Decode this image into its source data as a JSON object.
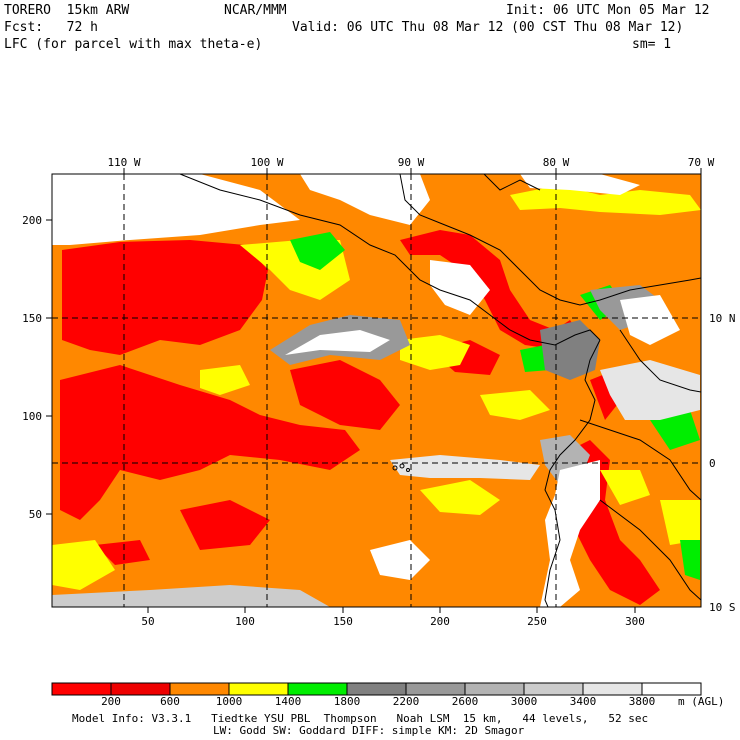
{
  "header": {
    "model_name": "TORERO  15km ARW",
    "center": "NCAR/MMM",
    "init": "Init: 06 UTC Mon 05 Mar 12",
    "forecast": "Fcst:   72 h",
    "valid": "Valid: 06 UTC Thu 08 Mar 12 (00 CST Thu 08 Mar 12)",
    "field": "LFC (for parcel with max theta-e)",
    "smoothing": "sm= 1"
  },
  "map": {
    "lon_labels": [
      "110 W",
      "100 W",
      "90 W",
      "80 W",
      "70 W"
    ],
    "lat_labels": [
      "10 N",
      "0",
      "10 S"
    ],
    "grid_y_labels": [
      "200",
      "150",
      "100",
      "50"
    ],
    "grid_x_labels": [
      "50",
      "100",
      "150",
      "200",
      "250",
      "300"
    ]
  },
  "legend": {
    "colors": [
      "#ff0000",
      "#ee0000",
      "#ff8800",
      "#ffff00",
      "#00ee00",
      "#808080",
      "#999999",
      "#b3b3b3",
      "#cccccc",
      "#e6e6e6",
      "#ffffff"
    ],
    "tick_labels": [
      "200",
      "600",
      "1000",
      "1400",
      "1800",
      "2200",
      "2600",
      "3000",
      "3400",
      "3800"
    ],
    "units": "m (AGL)"
  },
  "footer": {
    "line1": "Model Info: V3.3.1   Tiedtke YSU PBL  Thompson   Noah LSM  15 km,   44 levels,   52 sec",
    "line2": "LW: Godd SW: Goddard DIFF: simple KM: 2D Smagor"
  }
}
